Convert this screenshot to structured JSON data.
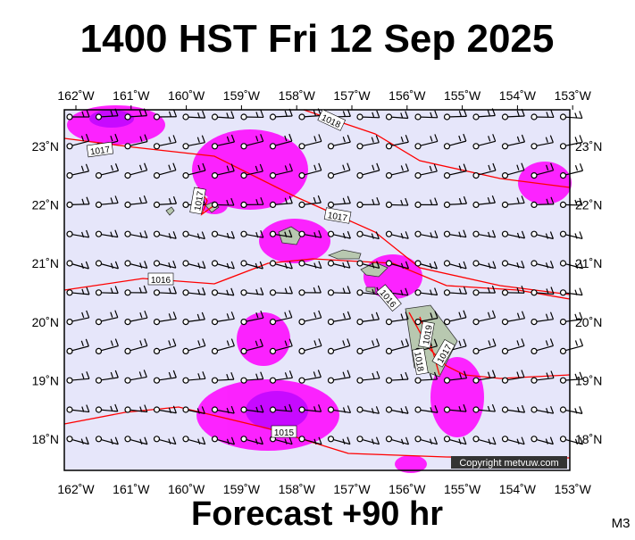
{
  "header": {
    "title": "1400 HST Fri 12 Sep 2025"
  },
  "map": {
    "lon_labels": [
      "162˚W",
      "161˚W",
      "160˚W",
      "159˚W",
      "158˚W",
      "157˚W",
      "156˚W",
      "155˚W",
      "154˚W",
      "153˚W"
    ],
    "lat_labels": [
      "23˚N",
      "22˚N",
      "21˚N",
      "20˚N",
      "19˚N",
      "18˚N"
    ],
    "isobar_labels": [
      "1018",
      "1017",
      "1017",
      "1017",
      "1016",
      "1016",
      "1015",
      "1019",
      "1018",
      "1017"
    ],
    "copyright": "Copyright metvuw.com"
  },
  "footer": {
    "forecast": "Forecast +90 hr",
    "code": "M3"
  }
}
